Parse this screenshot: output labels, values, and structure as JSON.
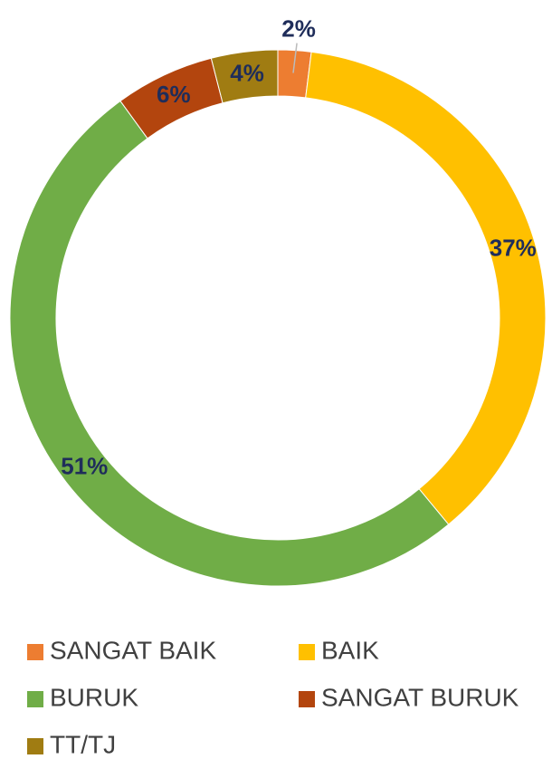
{
  "chart_data": {
    "type": "donut",
    "categories": [
      "SANGAT BAIK",
      "BAIK",
      "BURUK",
      "SANGAT BURUK",
      "TT/TJ"
    ],
    "values": [
      2,
      37,
      51,
      6,
      4
    ],
    "value_labels": [
      "2%",
      "37%",
      "51%",
      "6%",
      "4%"
    ],
    "colors": [
      "#ED7D31",
      "#FFC000",
      "#70AD47",
      "#B3450E",
      "#A07C12"
    ]
  }
}
